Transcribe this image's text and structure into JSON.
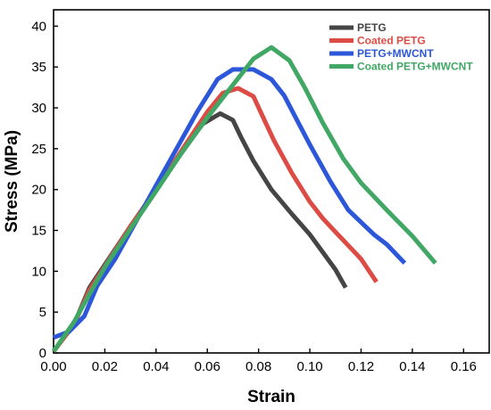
{
  "chart_data": {
    "type": "line",
    "xlabel": "Strain",
    "ylabel": "Stress (MPa)",
    "xlim": [
      0,
      0.17
    ],
    "ylim": [
      0,
      42
    ],
    "xticks": [
      "0.00",
      "0.02",
      "0.04",
      "0.06",
      "0.08",
      "0.10",
      "0.12",
      "0.14",
      "0.16"
    ],
    "yticks": [
      "0",
      "5",
      "10",
      "15",
      "20",
      "25",
      "30",
      "35",
      "40"
    ],
    "grid": false,
    "legend_position": "top-right",
    "series": [
      {
        "name": "PETG",
        "color": "#454545",
        "points": [
          [
            0.0,
            0.2
          ],
          [
            0.008,
            3.5
          ],
          [
            0.014,
            8.0
          ],
          [
            0.02,
            10.8
          ],
          [
            0.03,
            15.5
          ],
          [
            0.04,
            20.0
          ],
          [
            0.05,
            24.5
          ],
          [
            0.058,
            28.0
          ],
          [
            0.065,
            29.3
          ],
          [
            0.07,
            28.5
          ],
          [
            0.073,
            26.5
          ],
          [
            0.078,
            23.5
          ],
          [
            0.085,
            20.0
          ],
          [
            0.093,
            17.0
          ],
          [
            0.1,
            14.5
          ],
          [
            0.11,
            10.2
          ],
          [
            0.114,
            8.0
          ]
        ]
      },
      {
        "name": "Coated PETG",
        "color": "#dd4c44",
        "points": [
          [
            0.0,
            0.2
          ],
          [
            0.008,
            3.5
          ],
          [
            0.014,
            7.7
          ],
          [
            0.02,
            10.6
          ],
          [
            0.03,
            15.5
          ],
          [
            0.04,
            20.0
          ],
          [
            0.05,
            24.8
          ],
          [
            0.06,
            29.5
          ],
          [
            0.066,
            31.8
          ],
          [
            0.072,
            32.4
          ],
          [
            0.078,
            31.4
          ],
          [
            0.083,
            28.0
          ],
          [
            0.086,
            26.0
          ],
          [
            0.093,
            22.0
          ],
          [
            0.1,
            18.5
          ],
          [
            0.105,
            16.5
          ],
          [
            0.11,
            14.8
          ],
          [
            0.12,
            11.5
          ],
          [
            0.126,
            8.7
          ]
        ]
      },
      {
        "name": "PETG+MWCNT",
        "color": "#2c57d9",
        "points": [
          [
            0.0,
            1.9
          ],
          [
            0.006,
            2.6
          ],
          [
            0.012,
            4.5
          ],
          [
            0.017,
            8.2
          ],
          [
            0.024,
            11.5
          ],
          [
            0.032,
            16.0
          ],
          [
            0.04,
            20.5
          ],
          [
            0.048,
            25.0
          ],
          [
            0.056,
            29.5
          ],
          [
            0.064,
            33.5
          ],
          [
            0.07,
            34.7
          ],
          [
            0.078,
            34.7
          ],
          [
            0.085,
            33.5
          ],
          [
            0.09,
            31.5
          ],
          [
            0.095,
            28.5
          ],
          [
            0.1,
            25.5
          ],
          [
            0.108,
            21.0
          ],
          [
            0.115,
            17.5
          ],
          [
            0.125,
            14.5
          ],
          [
            0.13,
            13.3
          ],
          [
            0.137,
            11.0
          ]
        ]
      },
      {
        "name": "Coated PETG+MWCNT",
        "color": "#40a764",
        "points": [
          [
            0.0,
            0.2
          ],
          [
            0.008,
            3.8
          ],
          [
            0.014,
            7.2
          ],
          [
            0.02,
            10.5
          ],
          [
            0.03,
            15.2
          ],
          [
            0.04,
            19.8
          ],
          [
            0.05,
            24.5
          ],
          [
            0.06,
            28.8
          ],
          [
            0.07,
            32.8
          ],
          [
            0.078,
            36.0
          ],
          [
            0.085,
            37.4
          ],
          [
            0.092,
            35.8
          ],
          [
            0.098,
            32.5
          ],
          [
            0.105,
            28.2
          ],
          [
            0.113,
            23.8
          ],
          [
            0.12,
            20.8
          ],
          [
            0.13,
            17.5
          ],
          [
            0.14,
            14.3
          ],
          [
            0.149,
            11.0
          ]
        ]
      }
    ]
  }
}
